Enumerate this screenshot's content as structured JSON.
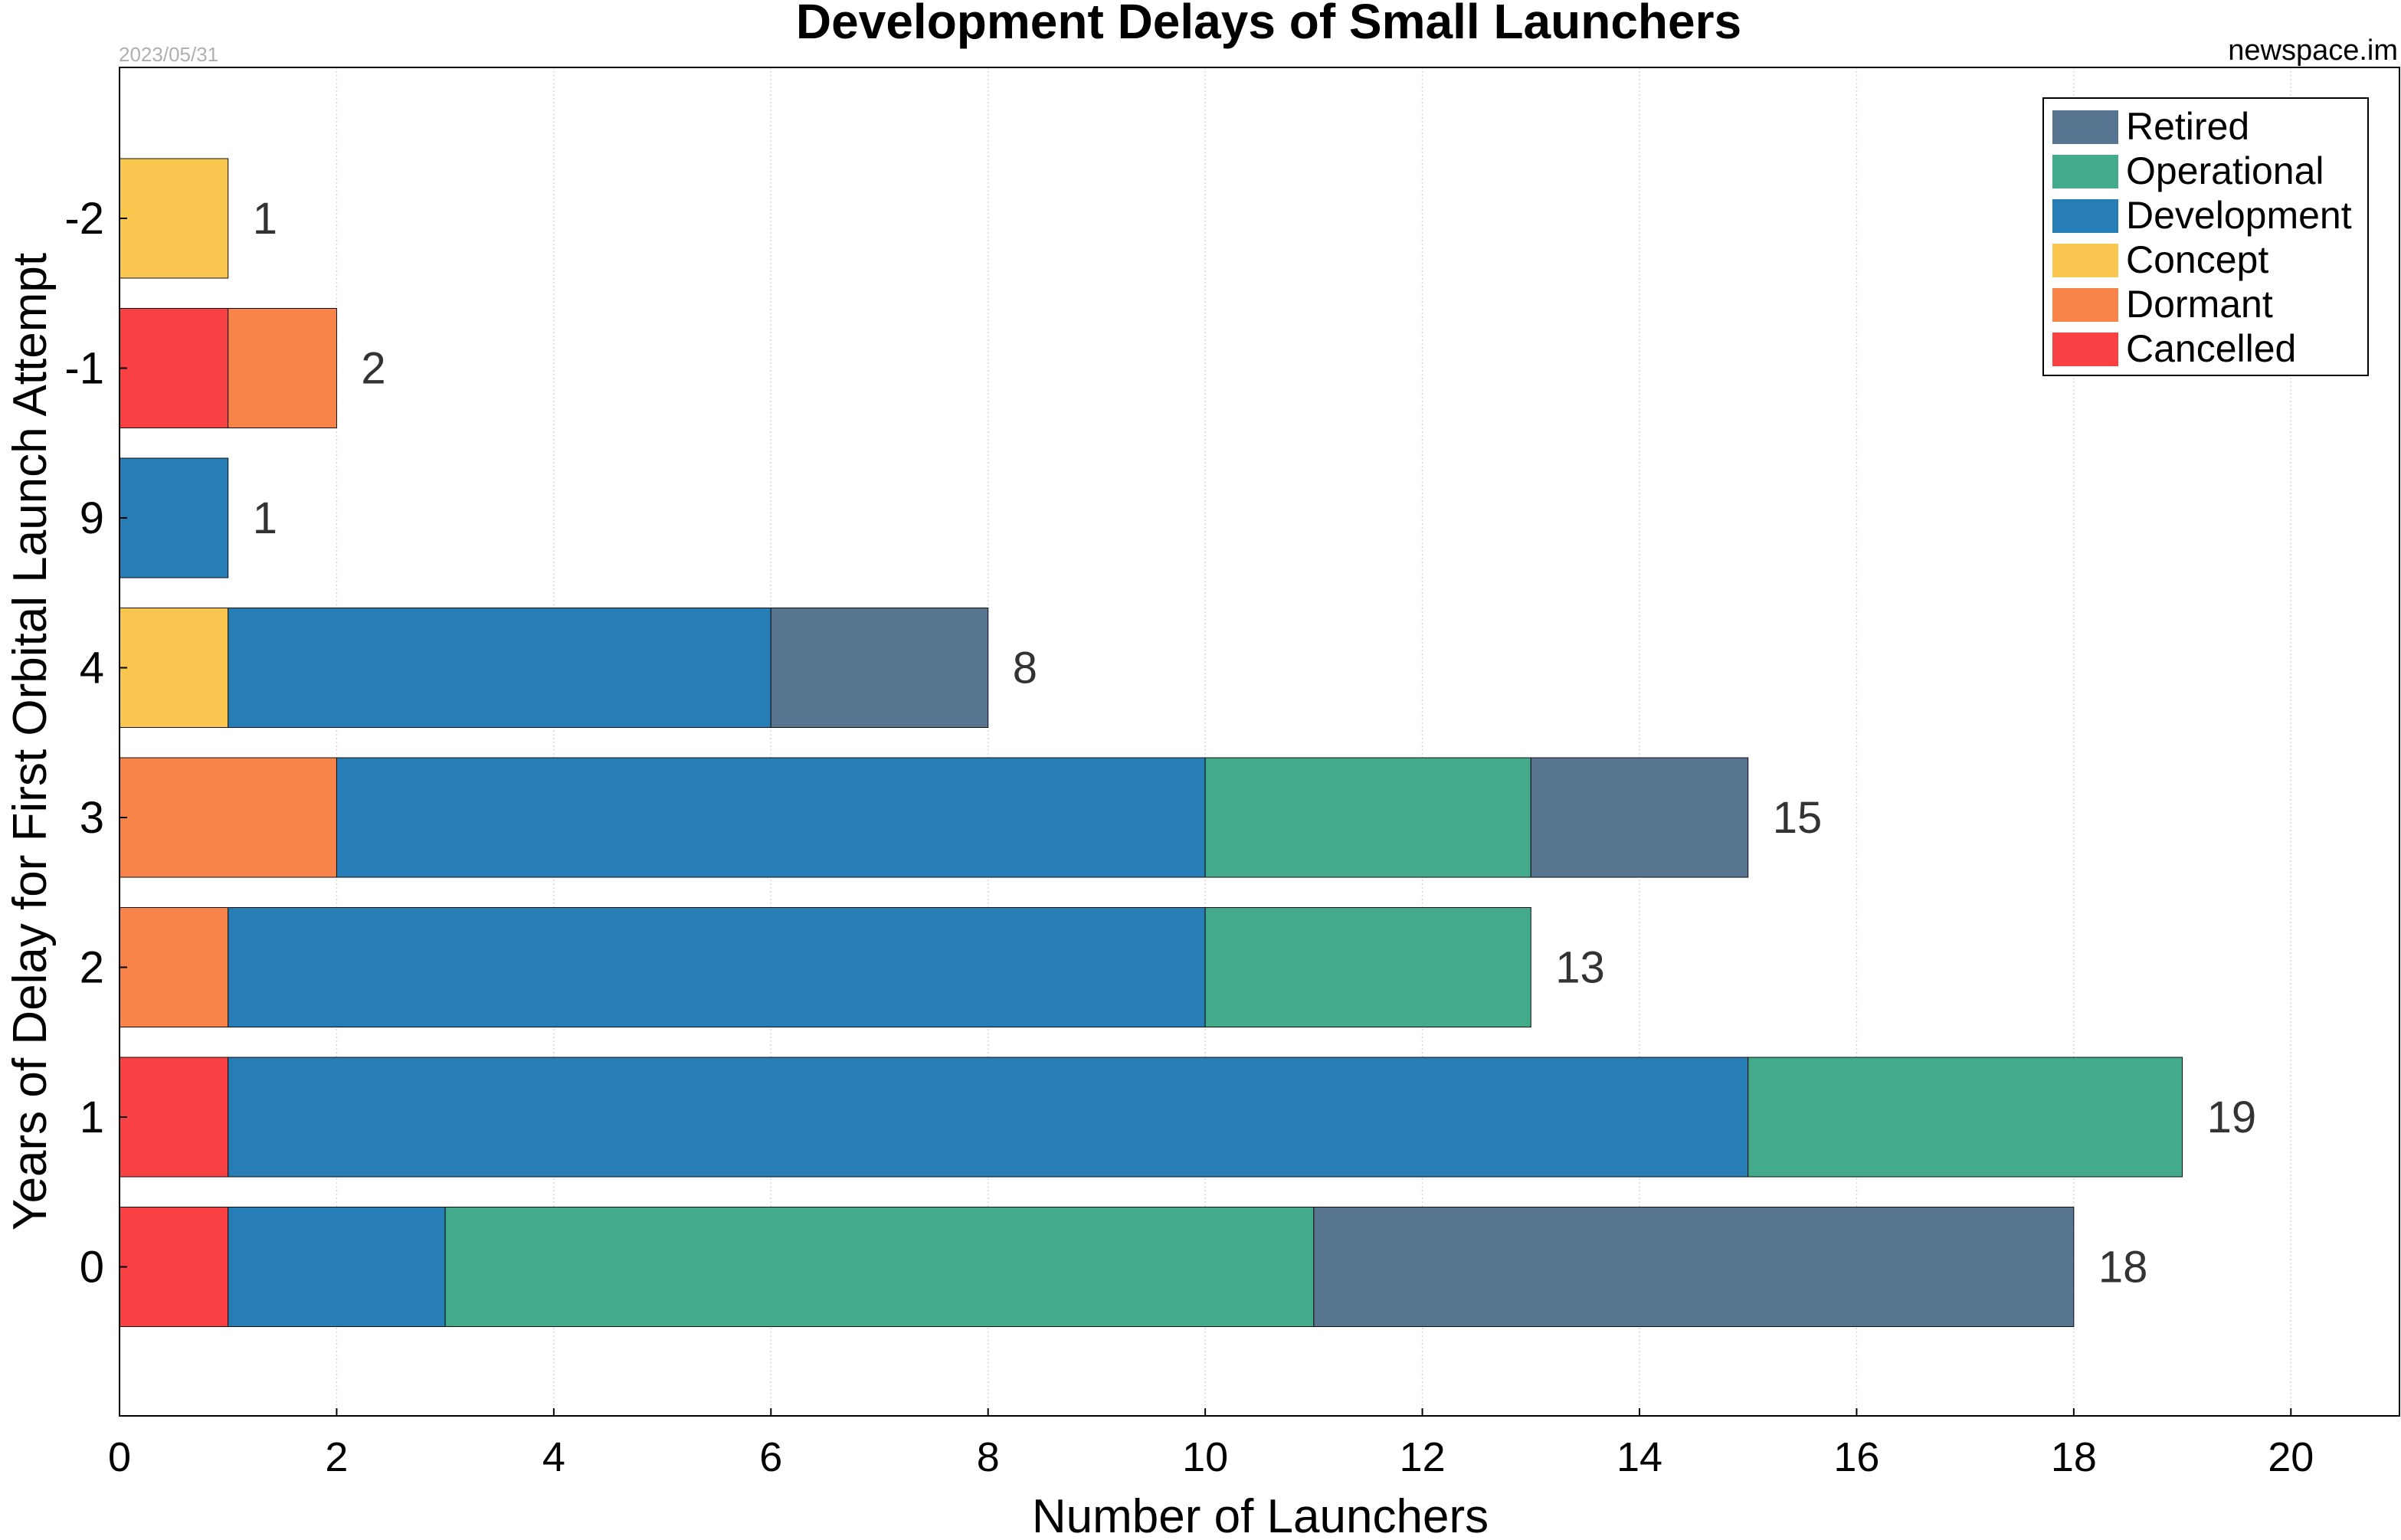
{
  "header": {
    "date": "2023/05/31",
    "source": "newspace.im"
  },
  "chart_data": {
    "type": "bar",
    "orientation": "horizontal",
    "stacked": true,
    "title": "Development Delays of Small Launchers",
    "xlabel": "Number of Launchers",
    "ylabel": "Years of Delay for First Orbital Launch Attempt",
    "xlim": [
      0,
      21
    ],
    "xticks": [
      0,
      2,
      4,
      6,
      8,
      10,
      12,
      14,
      16,
      18,
      20
    ],
    "grid": "vertical dotted",
    "legend_position": "top-right",
    "categories": [
      "-2",
      "-1",
      "9",
      "4",
      "3",
      "2",
      "1",
      "0"
    ],
    "series": [
      {
        "name": "Cancelled",
        "color": "#F94144",
        "values": [
          0,
          1,
          0,
          0,
          0,
          0,
          1,
          1
        ]
      },
      {
        "name": "Dormant",
        "color": "#F9844A",
        "values": [
          0,
          1,
          0,
          0,
          2,
          1,
          0,
          0
        ]
      },
      {
        "name": "Concept",
        "color": "#F9C74F",
        "values": [
          1,
          0,
          0,
          1,
          0,
          0,
          0,
          0
        ]
      },
      {
        "name": "Development",
        "color": "#277DB5",
        "values": [
          0,
          0,
          1,
          5,
          8,
          9,
          14,
          2
        ]
      },
      {
        "name": "Operational",
        "color": "#43AA8B",
        "values": [
          0,
          0,
          0,
          0,
          3,
          3,
          4,
          8
        ]
      },
      {
        "name": "Retired",
        "color": "#577590",
        "values": [
          0,
          0,
          0,
          2,
          2,
          0,
          0,
          7
        ]
      }
    ],
    "totals": [
      1,
      2,
      1,
      8,
      15,
      13,
      19,
      18
    ],
    "legend_order": [
      "Retired",
      "Operational",
      "Development",
      "Concept",
      "Dormant",
      "Cancelled"
    ]
  }
}
